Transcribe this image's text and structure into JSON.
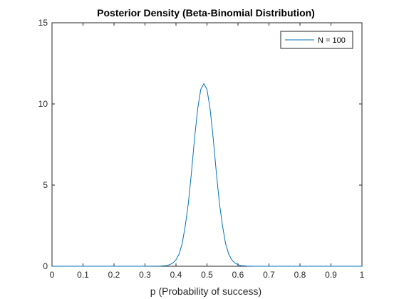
{
  "chart_data": {
    "type": "line",
    "title": "Posterior Density (Beta-Binomial Distribution)",
    "xlabel": "p (Probability of success)",
    "ylabel": "",
    "xlim": [
      0,
      1
    ],
    "ylim": [
      0,
      15
    ],
    "xticks": [
      "0",
      "0.1",
      "0.2",
      "0.3",
      "0.4",
      "0.5",
      "0.6",
      "0.7",
      "0.8",
      "0.9",
      "1"
    ],
    "yticks": [
      "0",
      "5",
      "10",
      "15"
    ],
    "grid": false,
    "legend": {
      "position": "top-right",
      "entries": [
        "N = 100"
      ]
    },
    "series": [
      {
        "name": "N = 100",
        "color": "#0072bd",
        "x": [
          0,
          0.3,
          0.35,
          0.37,
          0.38,
          0.39,
          0.4,
          0.41,
          0.42,
          0.43,
          0.44,
          0.45,
          0.46,
          0.47,
          0.48,
          0.49,
          0.5,
          0.51,
          0.52,
          0.53,
          0.54,
          0.55,
          0.56,
          0.57,
          0.58,
          0.59,
          0.6,
          0.61,
          0.63,
          0.65,
          0.7,
          1
        ],
        "y": [
          0,
          0,
          0.01,
          0.04,
          0.1,
          0.2,
          0.4,
          0.75,
          1.4,
          2.5,
          3.9,
          5.8,
          7.9,
          9.7,
          10.9,
          11.25,
          10.9,
          9.7,
          7.9,
          5.8,
          3.9,
          2.5,
          1.4,
          0.75,
          0.4,
          0.2,
          0.1,
          0.04,
          0.01,
          0,
          0,
          0
        ]
      }
    ]
  }
}
